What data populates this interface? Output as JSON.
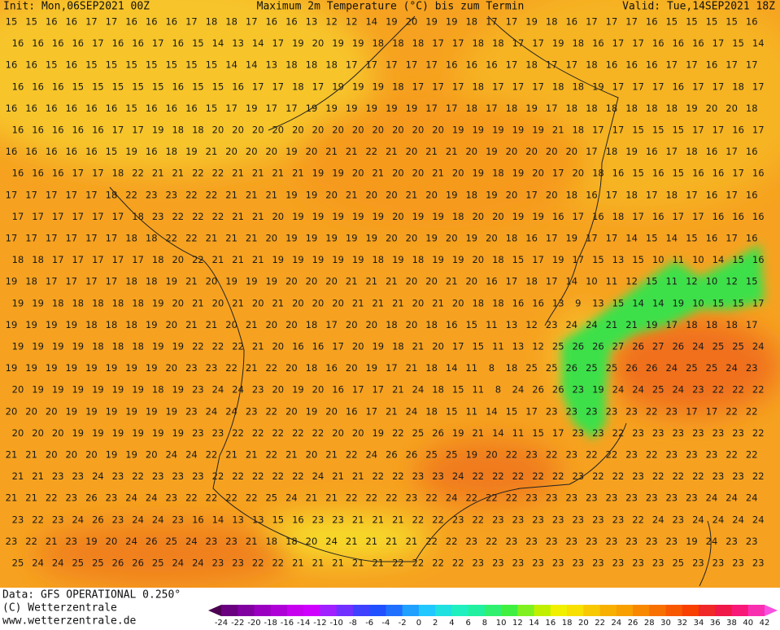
{
  "header": {
    "init": "Init: Mon,06SEP2021 00Z",
    "title": "Maximum 2m Temperature (°C) bis zum Termin",
    "valid": "Valid: Tue,14SEP2021 18Z"
  },
  "footer": {
    "lines": [
      "Data: GFS OPERATIONAL 0.250°",
      "(C) Wetterzentrale",
      "www.wetterzentrale.de"
    ]
  },
  "colorbar": {
    "labels": [
      -24,
      -22,
      -20,
      -18,
      -16,
      -14,
      -12,
      -10,
      -8,
      -6,
      -4,
      -2,
      0,
      2,
      4,
      6,
      8,
      10,
      12,
      14,
      16,
      18,
      20,
      22,
      24,
      26,
      28,
      30,
      32,
      34,
      36,
      38,
      40,
      42
    ],
    "colors": [
      "#4b0050",
      "#6a0080",
      "#8000a0",
      "#9a00c0",
      "#b000d8",
      "#c800f0",
      "#d000ff",
      "#a020ff",
      "#7030ff",
      "#4040ff",
      "#2050ff",
      "#2070ff",
      "#20a0ff",
      "#20c8ff",
      "#20e0e0",
      "#20f0c0",
      "#20f0a0",
      "#30f070",
      "#40f040",
      "#80f020",
      "#c0f000",
      "#f0f000",
      "#f8e000",
      "#f8c800",
      "#f8b000",
      "#f8a000",
      "#f88800",
      "#f87000",
      "#f85800",
      "#f84000",
      "#f02828",
      "#f01848",
      "#f81878",
      "#f830b0",
      "#f850e0"
    ]
  },
  "map": {
    "rows": [
      [
        15,
        15,
        16,
        16,
        17,
        17,
        16,
        16,
        16,
        17,
        18,
        18,
        17,
        16,
        16,
        13,
        12,
        12,
        14,
        19,
        20,
        19,
        19,
        18,
        17,
        17,
        19,
        18,
        16,
        17,
        17,
        17,
        16,
        15,
        15,
        15,
        15,
        16
      ],
      [
        16,
        16,
        16,
        16,
        17,
        16,
        16,
        17,
        16,
        15,
        14,
        13,
        14,
        17,
        19,
        20,
        19,
        19,
        18,
        18,
        18,
        17,
        17,
        18,
        18,
        17,
        17,
        19,
        18,
        16,
        17,
        17,
        16,
        16,
        16,
        17,
        15,
        14
      ],
      [
        16,
        16,
        15,
        16,
        15,
        15,
        15,
        15,
        15,
        15,
        15,
        14,
        14,
        13,
        18,
        18,
        18,
        17,
        17,
        17,
        17,
        17,
        16,
        16,
        16,
        17,
        18,
        17,
        17,
        18,
        16,
        16,
        16,
        17,
        17,
        16,
        17,
        17
      ],
      [
        16,
        16,
        16,
        15,
        15,
        15,
        15,
        15,
        16,
        15,
        15,
        16,
        17,
        17,
        18,
        17,
        19,
        19,
        19,
        18,
        17,
        17,
        17,
        18,
        17,
        17,
        17,
        18,
        18,
        19,
        17,
        17,
        17,
        16,
        17,
        17,
        18,
        17
      ],
      [
        16,
        16,
        16,
        16,
        16,
        16,
        15,
        16,
        16,
        16,
        15,
        17,
        19,
        17,
        17,
        19,
        19,
        19,
        19,
        19,
        19,
        17,
        17,
        18,
        17,
        18,
        19,
        17,
        18,
        18,
        18,
        18,
        18,
        18,
        19,
        20,
        20,
        18
      ],
      [
        16,
        16,
        16,
        16,
        16,
        17,
        17,
        19,
        18,
        18,
        20,
        20,
        20,
        20,
        20,
        20,
        20,
        20,
        20,
        20,
        20,
        20,
        19,
        19,
        19,
        19,
        19,
        21,
        18,
        17,
        17,
        15,
        15,
        15,
        17,
        17,
        16,
        17
      ],
      [
        16,
        16,
        16,
        16,
        16,
        15,
        19,
        16,
        18,
        19,
        21,
        20,
        20,
        20,
        19,
        20,
        21,
        21,
        22,
        21,
        20,
        21,
        21,
        20,
        19,
        20,
        20,
        20,
        20,
        17,
        18,
        19,
        16,
        17,
        18,
        16,
        17,
        16
      ],
      [
        16,
        16,
        16,
        17,
        17,
        18,
        22,
        21,
        21,
        22,
        22,
        21,
        21,
        21,
        21,
        19,
        19,
        20,
        21,
        20,
        20,
        21,
        20,
        19,
        18,
        19,
        20,
        17,
        20,
        18,
        16,
        15,
        16,
        15,
        16,
        16,
        17,
        16
      ],
      [
        17,
        17,
        17,
        17,
        17,
        18,
        22,
        23,
        23,
        22,
        22,
        21,
        21,
        21,
        19,
        19,
        20,
        21,
        20,
        20,
        21,
        20,
        19,
        18,
        19,
        20,
        17,
        20,
        18,
        16,
        17,
        18,
        17,
        18,
        17,
        16,
        17,
        16
      ],
      [
        17,
        17,
        17,
        17,
        17,
        17,
        18,
        23,
        22,
        22,
        22,
        21,
        21,
        20,
        19,
        19,
        19,
        19,
        19,
        20,
        19,
        19,
        18,
        20,
        20,
        19,
        19,
        16,
        17,
        16,
        18,
        17,
        16,
        17,
        17,
        16,
        16,
        16
      ],
      [
        17,
        17,
        17,
        17,
        17,
        17,
        18,
        18,
        22,
        22,
        21,
        21,
        21,
        20,
        19,
        19,
        19,
        19,
        19,
        20,
        20,
        19,
        20,
        19,
        20,
        18,
        16,
        17,
        19,
        17,
        17,
        14,
        15,
        14,
        15,
        16,
        17,
        16
      ],
      [
        18,
        18,
        17,
        17,
        17,
        17,
        17,
        18,
        20,
        22,
        21,
        21,
        21,
        19,
        19,
        19,
        19,
        19,
        18,
        19,
        18,
        19,
        19,
        20,
        18,
        15,
        17,
        19,
        17,
        15,
        13,
        15,
        10,
        11,
        10,
        14,
        15,
        16
      ],
      [
        19,
        18,
        17,
        17,
        17,
        17,
        18,
        18,
        19,
        21,
        20,
        19,
        19,
        19,
        20,
        20,
        20,
        21,
        21,
        21,
        20,
        20,
        21,
        20,
        16,
        17,
        18,
        17,
        14,
        10,
        11,
        12,
        15,
        11,
        12,
        10,
        12,
        15
      ],
      [
        19,
        19,
        18,
        18,
        18,
        18,
        18,
        19,
        20,
        21,
        20,
        21,
        20,
        21,
        20,
        20,
        20,
        21,
        21,
        21,
        20,
        21,
        20,
        18,
        18,
        16,
        16,
        13,
        9,
        13,
        15,
        14,
        14,
        19,
        10,
        15,
        15,
        17
      ],
      [
        19,
        19,
        19,
        19,
        18,
        18,
        18,
        19,
        20,
        21,
        21,
        20,
        21,
        20,
        20,
        18,
        17,
        20,
        20,
        18,
        20,
        18,
        16,
        15,
        11,
        13,
        12,
        23,
        24,
        24,
        21,
        21,
        19,
        17,
        18,
        18,
        18,
        17
      ],
      [
        19,
        19,
        19,
        19,
        18,
        18,
        18,
        19,
        19,
        22,
        22,
        22,
        21,
        20,
        16,
        16,
        17,
        20,
        19,
        18,
        21,
        20,
        17,
        15,
        11,
        13,
        12,
        25,
        26,
        26,
        27,
        26,
        27,
        26,
        24,
        25,
        25,
        24
      ],
      [
        19,
        19,
        19,
        19,
        19,
        19,
        19,
        19,
        20,
        23,
        23,
        22,
        21,
        22,
        20,
        18,
        16,
        20,
        19,
        17,
        21,
        18,
        14,
        11,
        8,
        18,
        25,
        25,
        26,
        25,
        25,
        26,
        26,
        24,
        25,
        25,
        24,
        23
      ],
      [
        20,
        19,
        19,
        19,
        19,
        19,
        19,
        18,
        19,
        23,
        24,
        24,
        23,
        20,
        19,
        20,
        16,
        17,
        17,
        21,
        24,
        18,
        15,
        11,
        8,
        24,
        26,
        26,
        23,
        19,
        24,
        24,
        25,
        24,
        23,
        22,
        22,
        22
      ],
      [
        20,
        20,
        20,
        19,
        19,
        19,
        19,
        19,
        19,
        23,
        24,
        24,
        23,
        22,
        20,
        19,
        20,
        16,
        17,
        21,
        24,
        18,
        15,
        11,
        14,
        15,
        17,
        23,
        23,
        23,
        23,
        23,
        22,
        23,
        17,
        17,
        22,
        22
      ],
      [
        20,
        20,
        20,
        19,
        19,
        19,
        19,
        19,
        19,
        23,
        23,
        22,
        22,
        22,
        22,
        22,
        20,
        20,
        19,
        22,
        25,
        26,
        19,
        21,
        14,
        11,
        15,
        17,
        23,
        23,
        22,
        23,
        23,
        23,
        23,
        23,
        23,
        22
      ],
      [
        21,
        21,
        20,
        20,
        20,
        19,
        19,
        20,
        24,
        24,
        22,
        21,
        21,
        22,
        21,
        20,
        21,
        22,
        24,
        26,
        26,
        25,
        25,
        19,
        20,
        22,
        23,
        22,
        23,
        22,
        22,
        23,
        22,
        23,
        23,
        23,
        22,
        22
      ],
      [
        21,
        21,
        23,
        23,
        24,
        23,
        22,
        23,
        23,
        23,
        22,
        22,
        22,
        22,
        22,
        24,
        21,
        21,
        22,
        22,
        23,
        23,
        24,
        22,
        22,
        22,
        22,
        22,
        23,
        22,
        22,
        23,
        22,
        22,
        22,
        23,
        23,
        22
      ],
      [
        21,
        21,
        22,
        23,
        26,
        23,
        24,
        24,
        23,
        22,
        22,
        22,
        22,
        25,
        24,
        21,
        21,
        22,
        22,
        22,
        23,
        22,
        24,
        22,
        22,
        22,
        23,
        23,
        23,
        23,
        23,
        23,
        23,
        23,
        23,
        24,
        24,
        24
      ],
      [
        23,
        22,
        23,
        24,
        26,
        23,
        24,
        24,
        23,
        16,
        14,
        13,
        13,
        15,
        16,
        23,
        23,
        21,
        21,
        21,
        22,
        22,
        23,
        22,
        23,
        23,
        23,
        23,
        23,
        23,
        23,
        22,
        24,
        23,
        24,
        24,
        24,
        24
      ],
      [
        23,
        22,
        21,
        23,
        19,
        20,
        24,
        26,
        25,
        24,
        23,
        23,
        21,
        18,
        18,
        20,
        24,
        21,
        21,
        21,
        21,
        22,
        22,
        23,
        22,
        23,
        23,
        23,
        23,
        23,
        23,
        23,
        23,
        23,
        19,
        24,
        23,
        23
      ],
      [
        25,
        24,
        24,
        25,
        25,
        26,
        26,
        25,
        24,
        24,
        23,
        23,
        22,
        22,
        21,
        21,
        21,
        21,
        21,
        22,
        22,
        22,
        22,
        23,
        23,
        23,
        23,
        23,
        23,
        23,
        23,
        23,
        23,
        25,
        23,
        23,
        23,
        23
      ]
    ]
  }
}
